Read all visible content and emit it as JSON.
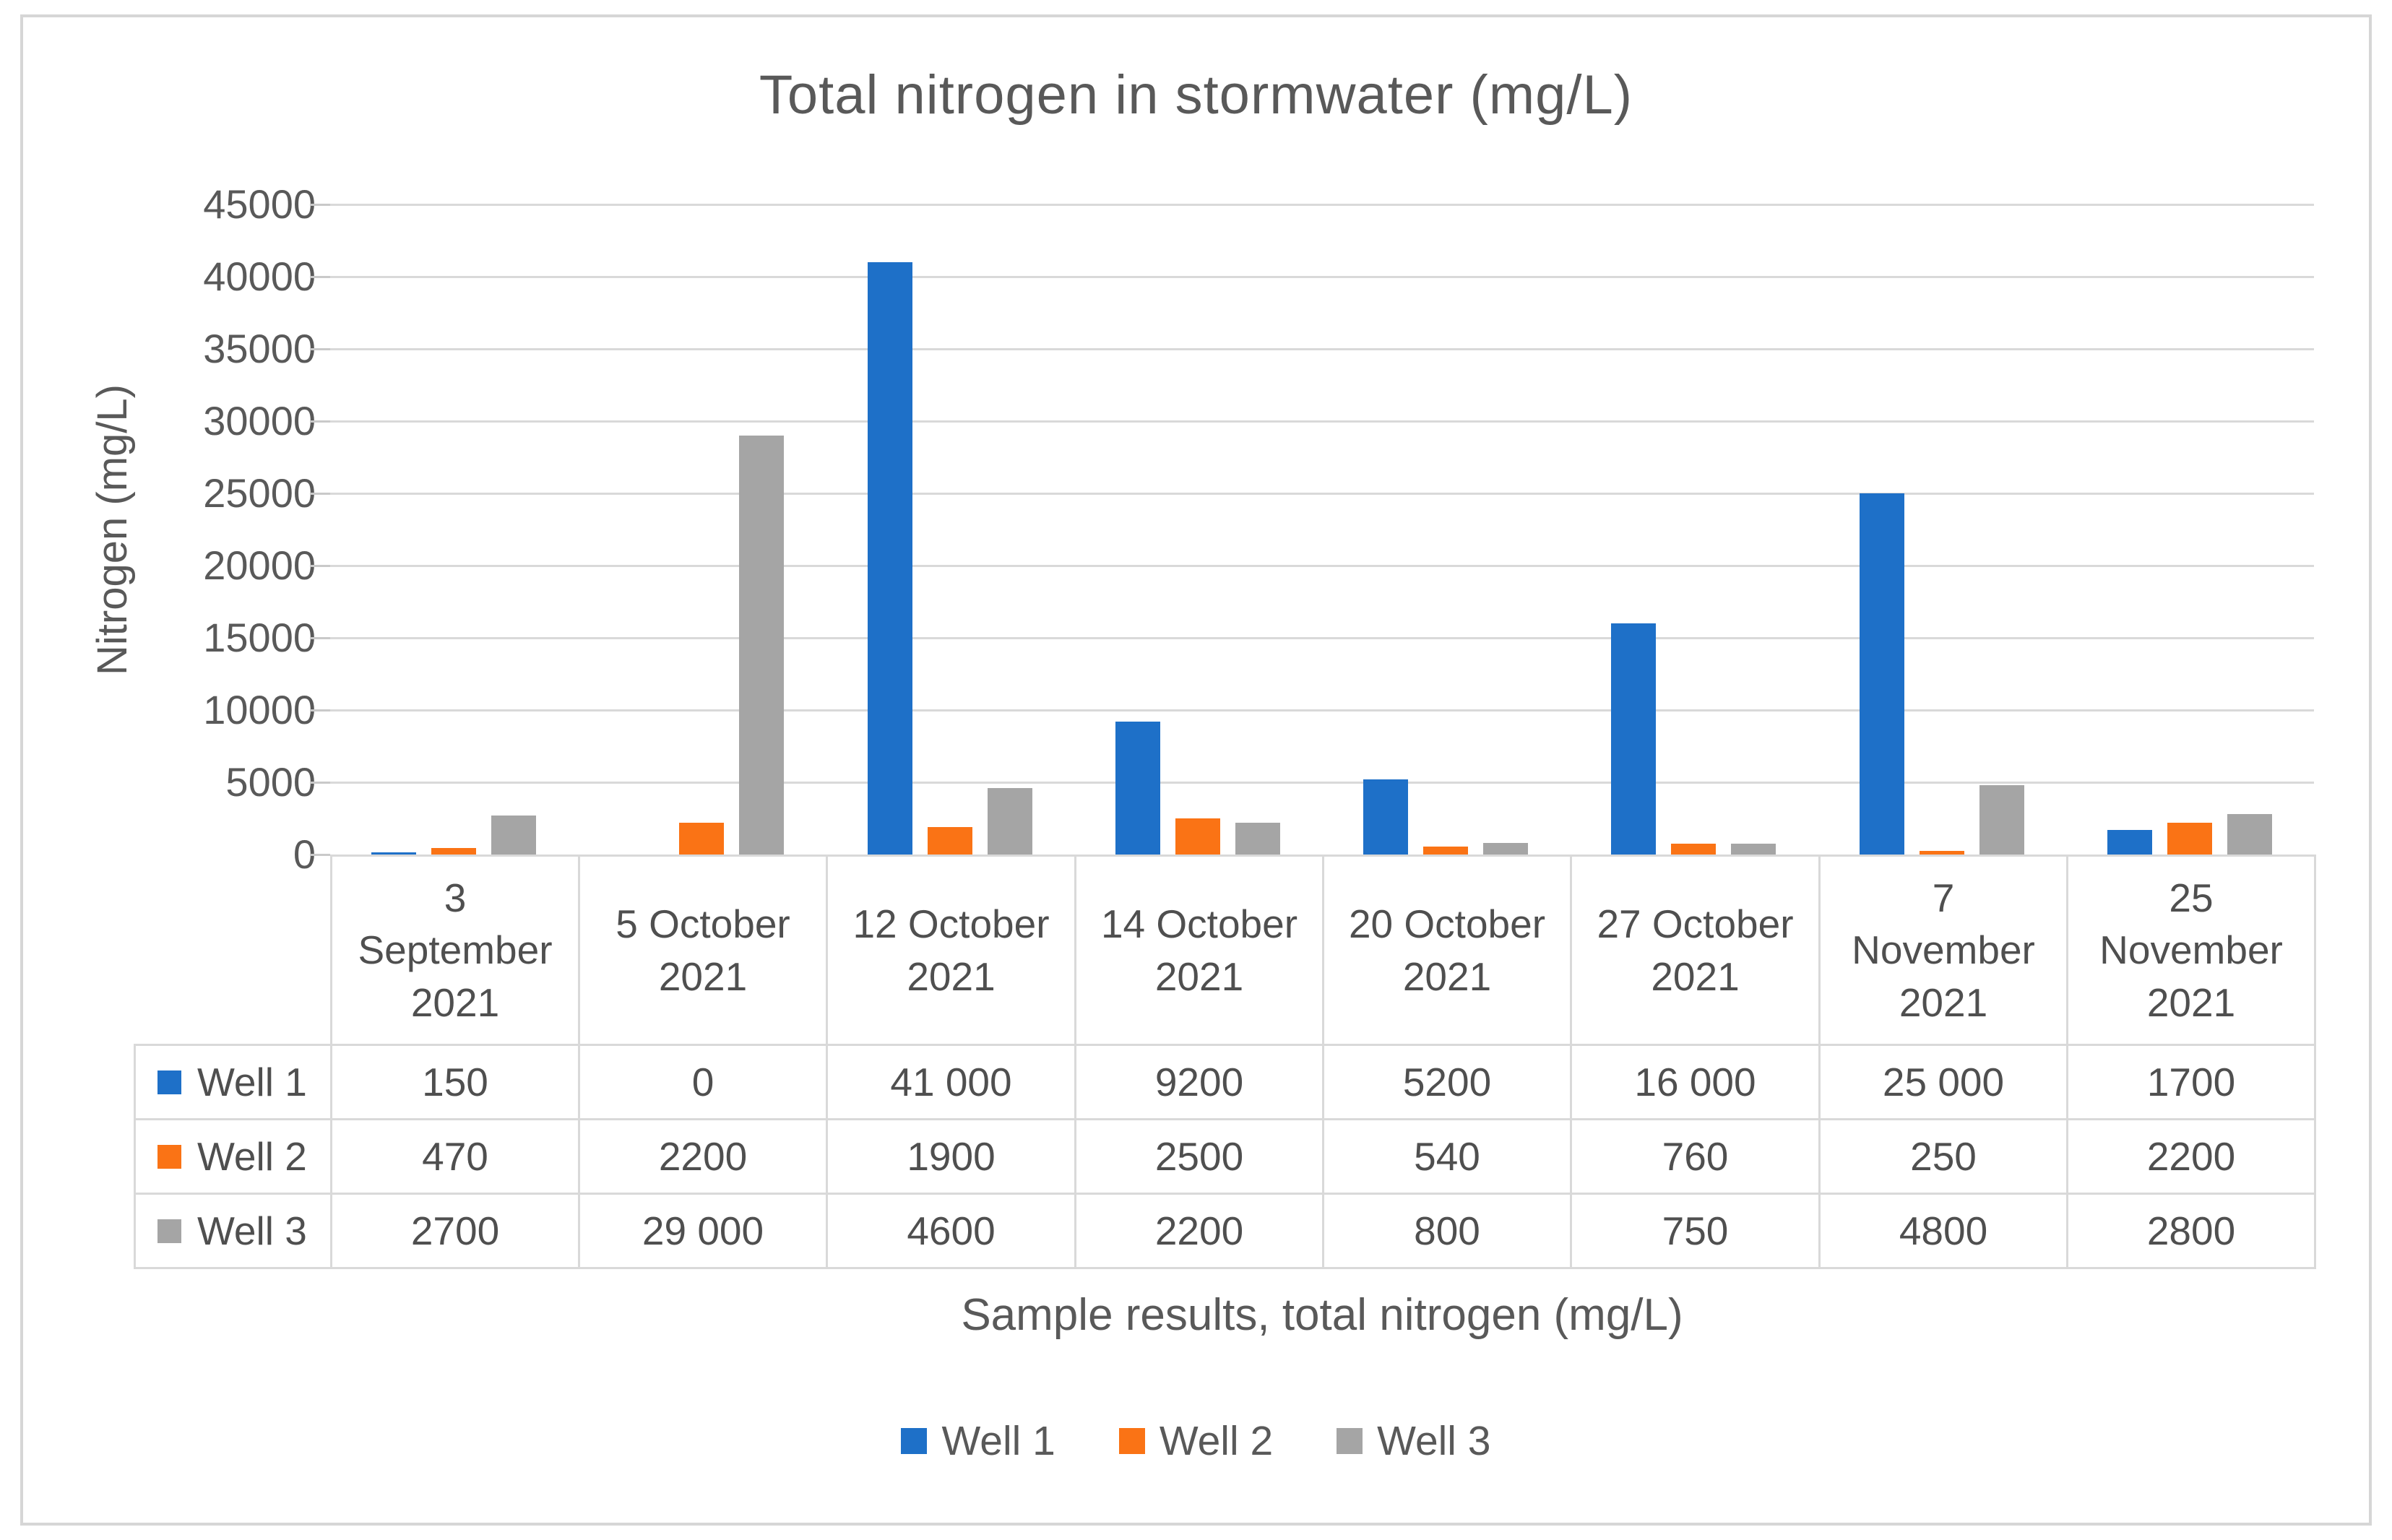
{
  "title": "Total nitrogen in stormwater (mg/L)",
  "y_axis": {
    "label": "Nitrogen (mg/L)",
    "ticks": [
      "45000",
      "40000",
      "35000",
      "30000",
      "25000",
      "20000",
      "15000",
      "10000",
      "5000",
      "0"
    ]
  },
  "x_axis": {
    "caption": "Sample results, total nitrogen (mg/L)"
  },
  "chart_data": {
    "type": "bar",
    "title": "Total nitrogen in stormwater (mg/L)",
    "xlabel": "Sample results, total nitrogen (mg/L)",
    "ylabel": "Nitrogen (mg/L)",
    "ylim": [
      0,
      45000
    ],
    "y_major_unit": 5000,
    "grid": true,
    "legend_position": "bottom",
    "categories": [
      "3 September 2021",
      "5 October 2021",
      "12 October 2021",
      "14 October 2021",
      "20 October 2021",
      "27 October 2021",
      "7 November 2021",
      "25 November 2021"
    ],
    "series": [
      {
        "name": "Well 1",
        "color": "#1E70C8",
        "values": [
          150,
          0,
          41000,
          9200,
          5200,
          16000,
          25000,
          1700
        ]
      },
      {
        "name": "Well 2",
        "color": "#FA7315",
        "values": [
          470,
          2200,
          1900,
          2500,
          540,
          760,
          250,
          2200
        ]
      },
      {
        "name": "Well 3",
        "color": "#A5A5A5",
        "values": [
          2700,
          29000,
          4600,
          2200,
          800,
          750,
          4800,
          2800
        ]
      }
    ]
  },
  "table": {
    "category_header_lines": [
      [
        "3",
        "September",
        "2021"
      ],
      [
        "5 October",
        "2021"
      ],
      [
        "12 October",
        "2021"
      ],
      [
        "14 October",
        "2021"
      ],
      [
        "20 October",
        "2021"
      ],
      [
        "27 October",
        "2021"
      ],
      [
        "7",
        "November",
        "2021"
      ],
      [
        "25",
        "November",
        "2021"
      ]
    ],
    "rows": [
      {
        "label": "Well 1",
        "color": "#1E70C8",
        "cells": [
          "150",
          "0",
          "41 000",
          "9200",
          "5200",
          "16 000",
          "25 000",
          "1700"
        ]
      },
      {
        "label": "Well 2",
        "color": "#FA7315",
        "cells": [
          "470",
          "2200",
          "1900",
          "2500",
          "540",
          "760",
          "250",
          "2200"
        ]
      },
      {
        "label": "Well 3",
        "color": "#A5A5A5",
        "cells": [
          "2700",
          "29 000",
          "4600",
          "2200",
          "800",
          "750",
          "4800",
          "2800"
        ]
      }
    ]
  },
  "legend": {
    "items": [
      {
        "label": "Well 1",
        "color": "#1E70C8"
      },
      {
        "label": "Well 2",
        "color": "#FA7315"
      },
      {
        "label": "Well 3",
        "color": "#A5A5A5"
      }
    ]
  },
  "colors": {
    "series_blue": "#1E70C8",
    "series_orange": "#FA7315",
    "series_gray": "#A5A5A5",
    "gridline": "#d9d9d9",
    "frame_border": "#d6d6d6",
    "text": "#595959"
  }
}
